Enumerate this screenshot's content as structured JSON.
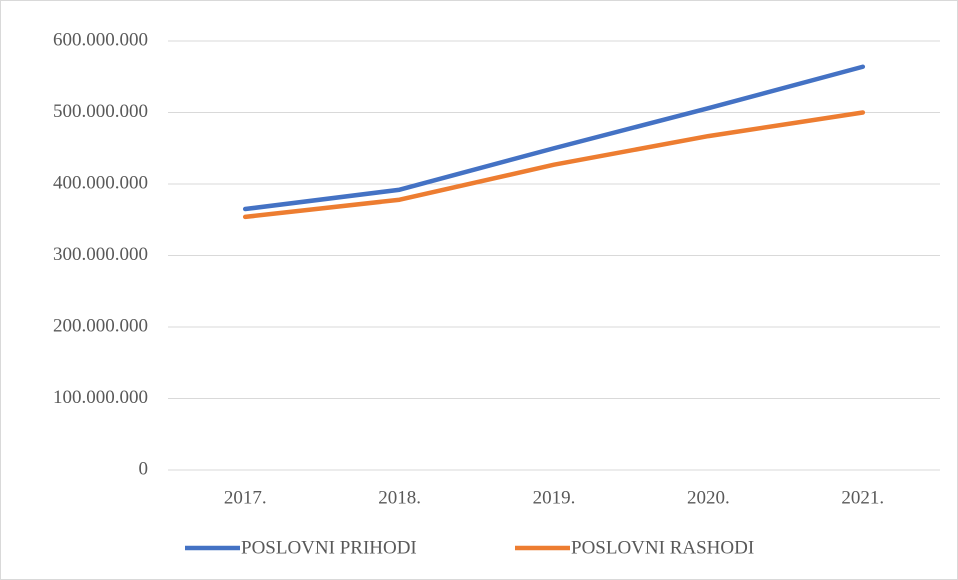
{
  "chart_data": {
    "type": "line",
    "categories": [
      "2017.",
      "2018.",
      "2019.",
      "2020.",
      "2021."
    ],
    "series": [
      {
        "name": "POSLOVNI PRIHODI",
        "color": "#4472c4",
        "values": [
          365000000,
          392000000,
          450000000,
          506000000,
          564000000
        ]
      },
      {
        "name": "POSLOVNI RASHODI",
        "color": "#ed7d31",
        "values": [
          354000000,
          378000000,
          427000000,
          467000000,
          500000000
        ]
      }
    ],
    "ylim": [
      0,
      600000000
    ],
    "yticks": [
      0,
      {
        "value": 100000000,
        "label": "100.000.000"
      },
      {
        "value": 200000000,
        "label": "200.000.000"
      },
      {
        "value": 300000000,
        "label": "300.000.000"
      },
      {
        "value": 400000000,
        "label": "400.000.000"
      },
      {
        "value": 500000000,
        "label": "500.000.000"
      },
      {
        "value": 600000000,
        "label": "600.000.000"
      }
    ],
    "grid": true,
    "legend": "bottom"
  }
}
